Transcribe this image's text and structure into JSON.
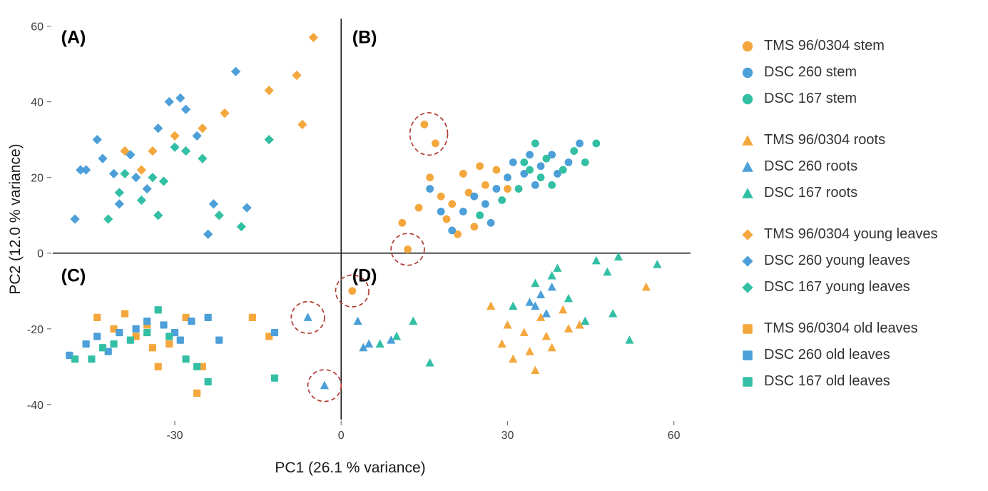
{
  "chart_data": {
    "type": "scatter",
    "title": "",
    "xlabel": "PC1 (26.1 % variance)",
    "ylabel": "PC2 (12.0 % variance)",
    "xlim": [
      -52,
      63
    ],
    "ylim": [
      -44,
      62
    ],
    "xticks": [
      -30,
      0,
      30,
      60
    ],
    "yticks": [
      -40,
      -20,
      0,
      20,
      40,
      60
    ],
    "grid": false,
    "legend_position": "right",
    "colors": {
      "orange": "#F4A73C",
      "blue": "#4C9FD8",
      "teal": "#33BFA4",
      "annotation": "#B03A30",
      "axis": "#1a1a1a"
    },
    "panel_labels": [
      {
        "label": "(A)",
        "x": -50.5,
        "y": 55.5
      },
      {
        "label": "(B)",
        "x": 2.0,
        "y": 55.5
      },
      {
        "label": "(C)",
        "x": -50.5,
        "y": -7.5
      },
      {
        "label": "(D)",
        "x": 2.0,
        "y": -7.5
      }
    ],
    "series": [
      {
        "name": "TMS 96/0304 stem",
        "marker": "circle",
        "color": "orange",
        "points": [
          [
            12,
            1
          ],
          [
            11,
            8
          ],
          [
            14,
            12
          ],
          [
            16,
            20
          ],
          [
            18,
            15
          ],
          [
            19,
            9
          ],
          [
            20,
            13
          ],
          [
            22,
            21
          ],
          [
            23,
            16
          ],
          [
            24,
            7
          ],
          [
            25,
            23
          ],
          [
            26,
            18
          ],
          [
            28,
            22
          ],
          [
            30,
            17
          ],
          [
            15,
            34
          ],
          [
            17,
            29
          ],
          [
            21,
            5
          ],
          [
            2,
            -10
          ]
        ]
      },
      {
        "name": "DSC 260 stem",
        "marker": "circle",
        "color": "blue",
        "points": [
          [
            16,
            17
          ],
          [
            18,
            11
          ],
          [
            20,
            6
          ],
          [
            22,
            11
          ],
          [
            24,
            15
          ],
          [
            26,
            13
          ],
          [
            27,
            8
          ],
          [
            28,
            17
          ],
          [
            30,
            20
          ],
          [
            31,
            24
          ],
          [
            33,
            21
          ],
          [
            34,
            26
          ],
          [
            35,
            18
          ],
          [
            36,
            23
          ],
          [
            38,
            26
          ],
          [
            39,
            21
          ],
          [
            41,
            24
          ],
          [
            43,
            29
          ]
        ]
      },
      {
        "name": "DSC 167 stem",
        "marker": "circle",
        "color": "teal",
        "points": [
          [
            25,
            10
          ],
          [
            29,
            14
          ],
          [
            32,
            17
          ],
          [
            33,
            24
          ],
          [
            34,
            22
          ],
          [
            35,
            29
          ],
          [
            36,
            20
          ],
          [
            37,
            25
          ],
          [
            38,
            18
          ],
          [
            40,
            22
          ],
          [
            42,
            27
          ],
          [
            44,
            24
          ],
          [
            46,
            29
          ]
        ]
      },
      {
        "name": "TMS 96/0304 roots",
        "marker": "triangle",
        "color": "orange",
        "points": [
          [
            27,
            -14
          ],
          [
            29,
            -24
          ],
          [
            30,
            -19
          ],
          [
            31,
            -28
          ],
          [
            33,
            -21
          ],
          [
            34,
            -26
          ],
          [
            35,
            -31
          ],
          [
            36,
            -17
          ],
          [
            37,
            -22
          ],
          [
            38,
            -25
          ],
          [
            40,
            -15
          ],
          [
            41,
            -20
          ],
          [
            43,
            -19
          ],
          [
            55,
            -9
          ]
        ]
      },
      {
        "name": "DSC 260 roots",
        "marker": "triangle",
        "color": "blue",
        "points": [
          [
            -6,
            -17
          ],
          [
            -3,
            -35
          ],
          [
            3,
            -18
          ],
          [
            4,
            -25
          ],
          [
            5,
            -24
          ],
          [
            9,
            -23
          ],
          [
            34,
            -13
          ],
          [
            35,
            -14
          ],
          [
            36,
            -11
          ],
          [
            37,
            -16
          ],
          [
            38,
            -9
          ]
        ]
      },
      {
        "name": "DSC 167 roots",
        "marker": "triangle",
        "color": "teal",
        "points": [
          [
            7,
            -24
          ],
          [
            10,
            -22
          ],
          [
            13,
            -18
          ],
          [
            16,
            -29
          ],
          [
            31,
            -14
          ],
          [
            35,
            -8
          ],
          [
            38,
            -6
          ],
          [
            39,
            -4
          ],
          [
            41,
            -12
          ],
          [
            44,
            -18
          ],
          [
            46,
            -2
          ],
          [
            48,
            -5
          ],
          [
            49,
            -16
          ],
          [
            50,
            -1
          ],
          [
            52,
            -23
          ],
          [
            57,
            -3
          ]
        ]
      },
      {
        "name": "TMS 96/0304 young leaves",
        "marker": "diamond",
        "color": "orange",
        "points": [
          [
            -39,
            27
          ],
          [
            -36,
            22
          ],
          [
            -34,
            27
          ],
          [
            -30,
            31
          ],
          [
            -25,
            33
          ],
          [
            -21,
            37
          ],
          [
            -13,
            43
          ],
          [
            -8,
            47
          ],
          [
            -7,
            34
          ],
          [
            -5,
            57
          ]
        ]
      },
      {
        "name": "DSC 260 young leaves",
        "marker": "diamond",
        "color": "blue",
        "points": [
          [
            -48,
            9
          ],
          [
            -47,
            22
          ],
          [
            -46,
            22
          ],
          [
            -44,
            30
          ],
          [
            -43,
            25
          ],
          [
            -41,
            21
          ],
          [
            -40,
            13
          ],
          [
            -38,
            26
          ],
          [
            -37,
            20
          ],
          [
            -35,
            17
          ],
          [
            -33,
            33
          ],
          [
            -31,
            40
          ],
          [
            -29,
            41
          ],
          [
            -28,
            38
          ],
          [
            -26,
            31
          ],
          [
            -24,
            5
          ],
          [
            -23,
            13
          ],
          [
            -19,
            48
          ],
          [
            -17,
            12
          ]
        ]
      },
      {
        "name": "DSC 167 young leaves",
        "marker": "diamond",
        "color": "teal",
        "points": [
          [
            -42,
            9
          ],
          [
            -40,
            16
          ],
          [
            -39,
            21
          ],
          [
            -36,
            14
          ],
          [
            -34,
            20
          ],
          [
            -33,
            10
          ],
          [
            -32,
            19
          ],
          [
            -30,
            28
          ],
          [
            -28,
            27
          ],
          [
            -25,
            25
          ],
          [
            -22,
            10
          ],
          [
            -18,
            7
          ],
          [
            -13,
            30
          ]
        ]
      },
      {
        "name": "TMS 96/0304 old leaves",
        "marker": "square",
        "color": "orange",
        "points": [
          [
            -44,
            -17
          ],
          [
            -41,
            -20
          ],
          [
            -39,
            -16
          ],
          [
            -37,
            -22
          ],
          [
            -35,
            -19
          ],
          [
            -34,
            -25
          ],
          [
            -33,
            -30
          ],
          [
            -31,
            -24
          ],
          [
            -28,
            -17
          ],
          [
            -26,
            -37
          ],
          [
            -25,
            -30
          ],
          [
            -16,
            -17
          ],
          [
            -13,
            -22
          ]
        ]
      },
      {
        "name": "DSC 260 old leaves",
        "marker": "square",
        "color": "blue",
        "points": [
          [
            -49,
            -27
          ],
          [
            -46,
            -24
          ],
          [
            -44,
            -22
          ],
          [
            -42,
            -26
          ],
          [
            -40,
            -21
          ],
          [
            -37,
            -20
          ],
          [
            -35,
            -18
          ],
          [
            -32,
            -19
          ],
          [
            -30,
            -21
          ],
          [
            -29,
            -23
          ],
          [
            -27,
            -18
          ],
          [
            -24,
            -17
          ],
          [
            -22,
            -23
          ],
          [
            -12,
            -21
          ]
        ]
      },
      {
        "name": "DSC 167 old leaves",
        "marker": "square",
        "color": "teal",
        "points": [
          [
            -48,
            -28
          ],
          [
            -45,
            -28
          ],
          [
            -43,
            -25
          ],
          [
            -41,
            -24
          ],
          [
            -38,
            -23
          ],
          [
            -35,
            -21
          ],
          [
            -33,
            -15
          ],
          [
            -31,
            -22
          ],
          [
            -28,
            -28
          ],
          [
            -26,
            -30
          ],
          [
            -24,
            -34
          ],
          [
            -12,
            -33
          ]
        ]
      }
    ],
    "annotations": {
      "ellipses": [
        {
          "cx": 15.8,
          "cy": 31.5,
          "rx": 3.4,
          "ry": 5.6
        },
        {
          "cx": 12.0,
          "cy": 1.0,
          "rx": 3.0,
          "ry": 4.2
        },
        {
          "cx": 2.0,
          "cy": -10.0,
          "rx": 3.0,
          "ry": 4.2
        },
        {
          "cx": -6.0,
          "cy": -17.0,
          "rx": 3.0,
          "ry": 4.2
        },
        {
          "cx": -3.0,
          "cy": -35.0,
          "rx": 3.0,
          "ry": 4.2
        }
      ]
    },
    "legend_group_size": 3
  }
}
